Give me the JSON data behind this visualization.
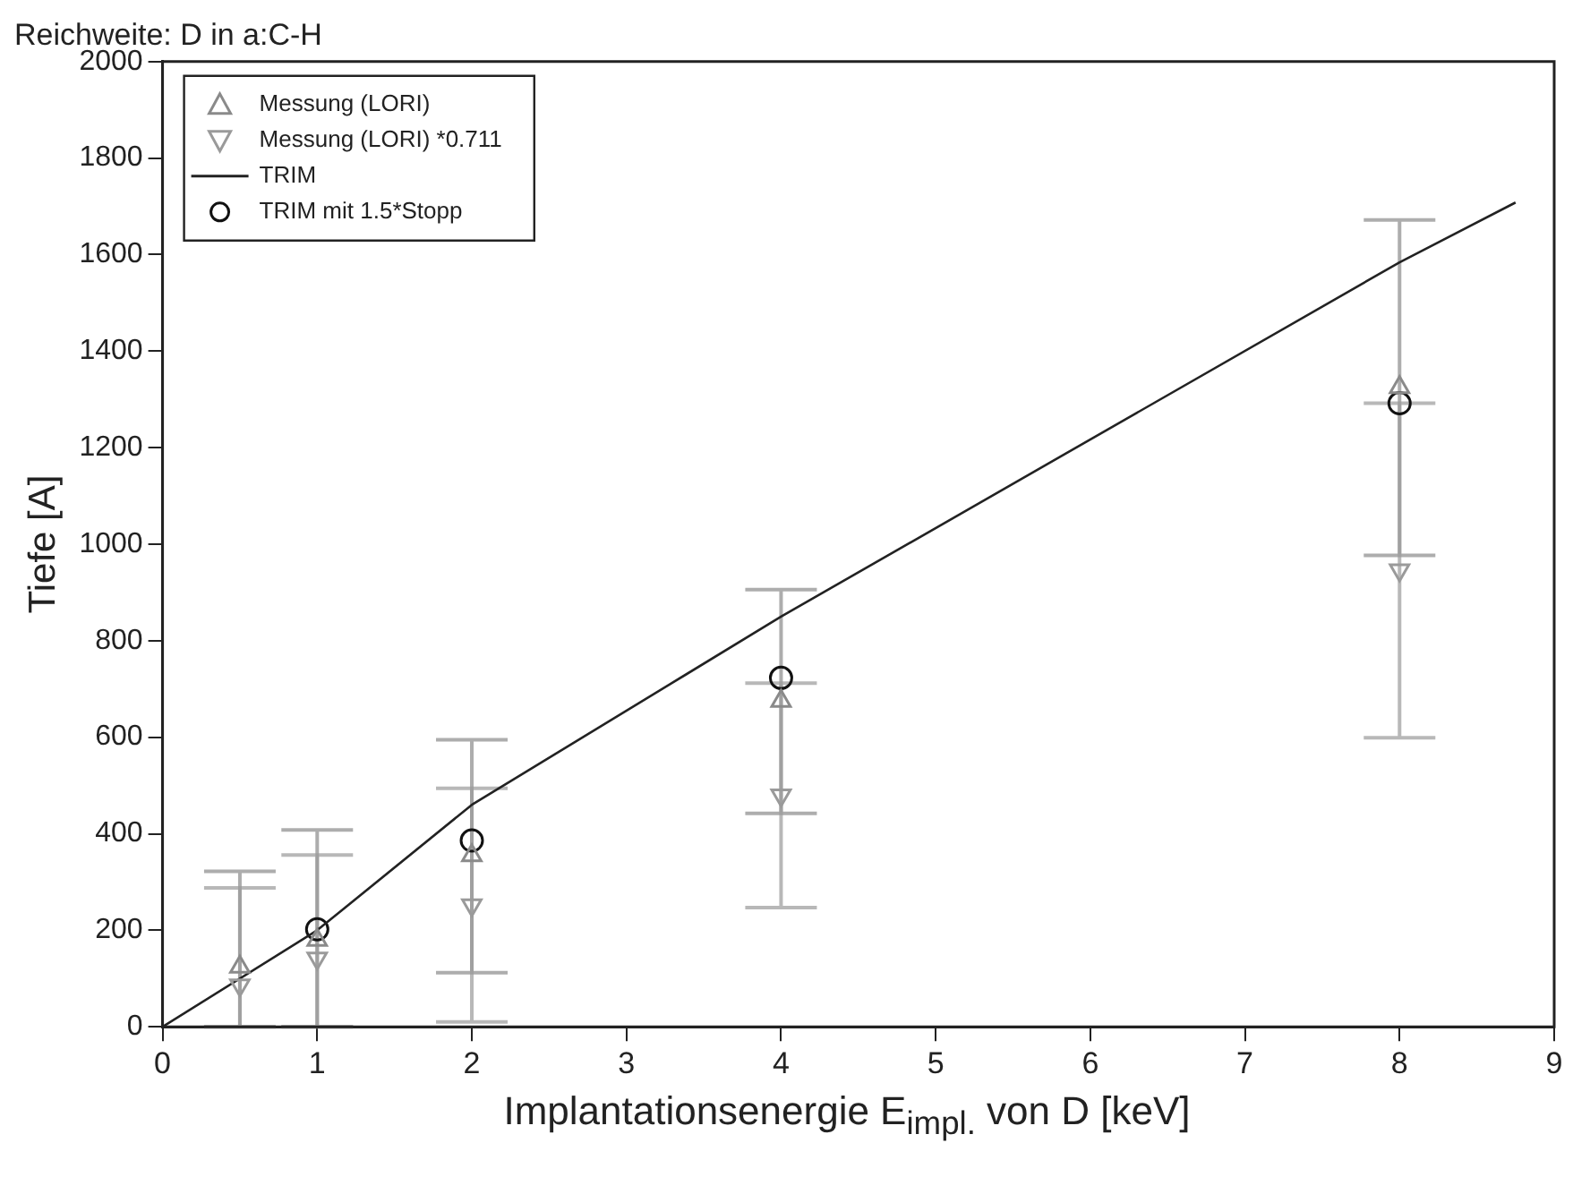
{
  "chart_data": {
    "type": "scatter",
    "title": "Reichweite: D in a:C-H",
    "xlabel": "Implantationsenergie E$_{impl.}$ von D [keV]",
    "ylabel": "Tiefe [A]",
    "xlim": [
      0,
      9
    ],
    "xticks": [
      0,
      1,
      2,
      3,
      4,
      5,
      6,
      7,
      8,
      9
    ],
    "ylim": [
      0,
      2000
    ],
    "yticks": [
      0,
      200,
      400,
      600,
      800,
      1000,
      1200,
      1400,
      1600,
      1800,
      2000
    ],
    "grid": false,
    "legend": "top left",
    "series": [
      {
        "name": "Messung (LORI)",
        "type": "scatter",
        "marker": "triangle",
        "color": "#8a8a8a",
        "x": [
          0.5,
          1,
          2,
          4,
          8
        ],
        "values": [
          124,
          180,
          355,
          675,
          1325
        ],
        "errors": [
          [
            0,
            322
          ],
          [
            0,
            408
          ],
          [
            112,
            595
          ],
          [
            442,
            906
          ],
          [
            977,
            1672
          ]
        ]
      },
      {
        "name": "Messung (LORI) *0.711",
        "type": "scatter",
        "marker": "triangle_down",
        "color": "#9a9a9a",
        "x": [
          0.5,
          1,
          2,
          4,
          8
        ],
        "values": [
          86,
          142,
          252,
          480,
          946
        ],
        "errors": [
          [
            0,
            288
          ],
          [
            0,
            356
          ],
          [
            10,
            494
          ],
          [
            247,
            712
          ],
          [
            599,
            1292
          ]
        ]
      },
      {
        "name": "TRIM",
        "type": "line",
        "marker": "none",
        "color": "#222222",
        "x": [
          0,
          1,
          2,
          4,
          8,
          8.75
        ],
        "values": [
          0,
          200,
          460,
          850,
          1584,
          1708
        ]
      },
      {
        "name": "TRIM mit 1.5*Stopp",
        "type": "scatter",
        "marker": "circle",
        "color": "#111111",
        "x": [
          1,
          2,
          4,
          8
        ],
        "values": [
          202,
          386,
          723,
          1292
        ]
      }
    ]
  }
}
